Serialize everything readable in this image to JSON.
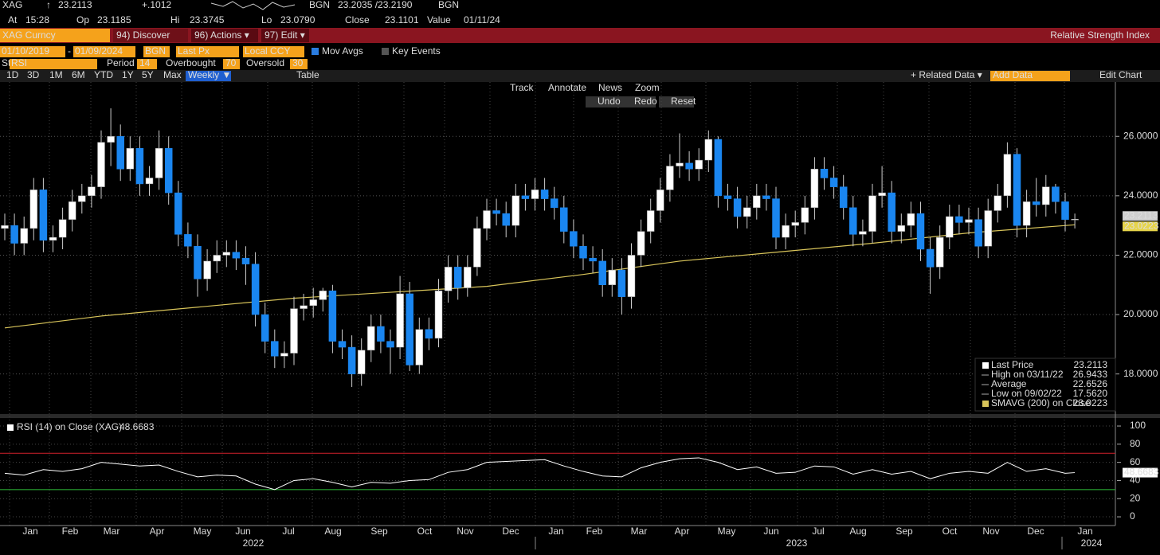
{
  "header": {
    "ticker": "XAG",
    "arrow": "↑",
    "last": "23.2113",
    "change": "+.1012",
    "bid_src": "BGN",
    "bid_ask": "23.2035 /23.2190",
    "ask_src": "BGN",
    "time_label": "At",
    "time": "15:28",
    "open_label": "Op",
    "open": "23.1185",
    "high_label": "Hi",
    "high": "23.3745",
    "low_label": "Lo",
    "low": "23.0790",
    "close_label": "Close",
    "close": "23.1101",
    "value_label": "Value",
    "value_date": "01/11/24"
  },
  "menu": {
    "security": "XAG Curncy",
    "discover": "94) Discover",
    "actions": "96) Actions ▾",
    "edit": "97) Edit ▾",
    "function_title": "Relative Strength Index"
  },
  "settings": {
    "start_date": "01/10/2019",
    "dash": "-",
    "end_date": "01/09/2024",
    "source": "BGN",
    "field": "Last Px",
    "currency": "Local CCY",
    "mov_avgs": "Mov Avgs",
    "key_events": "Key Events"
  },
  "study": {
    "label": "Study",
    "name": "RSI",
    "period_label": "Period",
    "period": 14,
    "overbought_label": "Overbought",
    "overbought": 70,
    "oversold_label": "Oversold",
    "oversold": 30
  },
  "periods": [
    "1D",
    "3D",
    "1M",
    "6M",
    "YTD",
    "1Y",
    "5Y",
    "Max"
  ],
  "frequency": "Weekly ▼",
  "table": "Table",
  "related": "+ Related Data ▾",
  "add_data": "Add Data",
  "edit_chart": "Edit Chart",
  "tools": [
    "Track",
    "Annotate",
    "News",
    "Zoom"
  ],
  "actions": [
    "Undo",
    "Redo",
    "Reset"
  ],
  "chart_data": [
    {
      "type": "candlestick",
      "up_color": "#ffffff",
      "down_color": "#1a86f0",
      "open": [
        22.9,
        23.0,
        22.4,
        22.9,
        24.2,
        22.5,
        22.6,
        23.2,
        23.8,
        24.0,
        24.3,
        25.8,
        26.0,
        24.9,
        25.6,
        24.4,
        24.6,
        25.6,
        24.1,
        22.7,
        22.3,
        21.2,
        21.8,
        22.0,
        22.1,
        21.9,
        21.7,
        20.0,
        19.1,
        18.6,
        18.7,
        20.2,
        20.3,
        20.5,
        20.8,
        19.1,
        18.9,
        18.0,
        18.8,
        19.6,
        19.1,
        18.9,
        20.7,
        18.3,
        19.5,
        19.2,
        20.8,
        21.6,
        20.9,
        21.6,
        22.9,
        23.5,
        23.4,
        23.0,
        24.0,
        23.9,
        24.2,
        23.9,
        23.6,
        22.8,
        22.3,
        21.9,
        21.8,
        21.0,
        21.5,
        20.6,
        22.0,
        22.8,
        23.5,
        24.2,
        25.0,
        25.1,
        24.9,
        25.2,
        25.9,
        24.0,
        23.9,
        23.3,
        23.6,
        24.0,
        23.9,
        22.6,
        23.0,
        23.1,
        23.6,
        24.9,
        24.6,
        24.3,
        23.6,
        22.7,
        22.8,
        24.0,
        24.1,
        22.8,
        23.0,
        23.4,
        22.2,
        21.6,
        22.6,
        23.3,
        23.1,
        23.2,
        22.3,
        23.5,
        24.0,
        25.4,
        23.0,
        23.8,
        23.7,
        24.3,
        23.8,
        23.2
      ],
      "high": [
        23.4,
        23.4,
        23.3,
        24.6,
        24.6,
        23.0,
        23.6,
        24.2,
        24.4,
        24.7,
        26.2,
        26.9433,
        26.4,
        26.0,
        26.0,
        25.0,
        26.2,
        26.0,
        24.5,
        23.1,
        22.7,
        22.2,
        22.5,
        22.5,
        22.5,
        22.3,
        22.1,
        20.4,
        19.5,
        19.1,
        20.6,
        20.7,
        20.9,
        20.9,
        21.0,
        19.5,
        19.3,
        19.2,
        20.0,
        20.0,
        19.5,
        21.3,
        21.1,
        19.9,
        19.9,
        21.2,
        22.0,
        22.0,
        22.0,
        23.3,
        23.9,
        23.9,
        23.8,
        24.4,
        24.4,
        24.6,
        24.6,
        24.3,
        24.0,
        23.2,
        22.7,
        22.3,
        22.2,
        21.9,
        21.9,
        22.4,
        23.2,
        23.9,
        24.6,
        25.4,
        26.1,
        25.5,
        25.6,
        26.2,
        26.0,
        24.4,
        24.3,
        24.0,
        24.4,
        24.4,
        24.3,
        23.4,
        23.5,
        24.0,
        25.3,
        25.3,
        25.0,
        24.7,
        24.0,
        23.2,
        24.4,
        25.0,
        24.5,
        23.4,
        23.8,
        23.8,
        22.6,
        23.0,
        23.7,
        23.7,
        23.6,
        23.6,
        23.9,
        24.4,
        25.8,
        25.6,
        24.2,
        24.6,
        24.7,
        24.4,
        24.1,
        23.4
      ],
      "low": [
        22.5,
        22.0,
        22.0,
        22.5,
        22.1,
        22.1,
        22.2,
        22.8,
        23.4,
        23.6,
        23.9,
        25.0,
        24.5,
        24.5,
        24.0,
        24.0,
        24.2,
        23.7,
        22.3,
        21.9,
        20.6,
        20.8,
        21.4,
        21.6,
        21.5,
        21.0,
        19.6,
        18.7,
        18.2,
        18.2,
        18.3,
        19.8,
        19.9,
        20.1,
        18.7,
        18.5,
        17.562,
        17.6,
        18.4,
        18.7,
        18.0,
        18.5,
        18.1,
        18.0,
        18.8,
        18.9,
        20.4,
        20.5,
        20.6,
        21.3,
        22.5,
        23.0,
        22.6,
        22.6,
        23.5,
        23.5,
        23.5,
        23.2,
        22.4,
        21.9,
        21.5,
        21.4,
        20.6,
        20.6,
        20.0,
        20.2,
        21.6,
        22.4,
        23.1,
        23.8,
        24.6,
        24.5,
        24.5,
        24.8,
        23.6,
        23.5,
        22.9,
        22.9,
        23.2,
        23.5,
        22.2,
        22.2,
        22.6,
        22.7,
        23.2,
        24.2,
        23.9,
        23.2,
        22.3,
        22.3,
        22.4,
        23.6,
        22.4,
        22.4,
        22.6,
        21.8,
        20.7,
        21.2,
        22.2,
        22.7,
        22.7,
        21.9,
        21.9,
        23.1,
        23.6,
        22.6,
        22.6,
        23.3,
        23.3,
        23.4,
        22.8,
        22.9
      ],
      "close": [
        23.0,
        22.4,
        22.9,
        24.2,
        22.5,
        22.6,
        23.2,
        23.8,
        24.0,
        24.3,
        25.8,
        26.0,
        24.9,
        25.6,
        24.4,
        24.6,
        25.6,
        24.1,
        22.7,
        22.3,
        21.2,
        21.8,
        22.0,
        22.1,
        21.9,
        21.7,
        20.0,
        19.1,
        18.6,
        18.7,
        20.2,
        20.3,
        20.5,
        20.8,
        19.1,
        18.9,
        18.0,
        18.8,
        19.6,
        19.1,
        18.9,
        20.7,
        18.3,
        19.5,
        19.2,
        20.8,
        21.6,
        20.9,
        21.6,
        22.9,
        23.5,
        23.4,
        23.0,
        24.0,
        23.9,
        24.2,
        23.9,
        23.6,
        22.8,
        22.3,
        21.9,
        21.8,
        21.0,
        21.5,
        20.6,
        22.0,
        22.8,
        23.5,
        24.2,
        25.0,
        25.1,
        24.9,
        25.2,
        25.9,
        24.0,
        23.9,
        23.3,
        23.6,
        24.0,
        23.9,
        22.6,
        23.0,
        23.1,
        23.6,
        24.9,
        24.6,
        24.3,
        23.6,
        22.7,
        22.8,
        24.0,
        24.1,
        22.8,
        23.0,
        23.4,
        22.2,
        21.6,
        22.6,
        23.3,
        23.1,
        23.2,
        22.3,
        23.5,
        24.0,
        25.4,
        23.0,
        23.8,
        23.7,
        24.3,
        23.8,
        23.2,
        23.2113
      ],
      "sma": {
        "name": "SMAVG (200) on Close",
        "color": "#d8c45a",
        "x": [
          0,
          10,
          20,
          30,
          40,
          50,
          60,
          70,
          80,
          90,
          100,
          111
        ],
        "values": [
          19.55,
          19.95,
          20.25,
          20.55,
          20.75,
          20.95,
          21.35,
          21.8,
          22.1,
          22.4,
          22.75,
          23.0223
        ]
      },
      "last_tag": "23.2113",
      "sma_tag": "23.0223",
      "ylim": [
        16.65,
        27.83
      ],
      "yticks": [
        {
          "value": 18,
          "label": "18.0000"
        },
        {
          "value": 20,
          "label": "20.0000"
        },
        {
          "value": 22,
          "label": "22.0000"
        },
        {
          "value": 24,
          "label": "24.0000"
        },
        {
          "value": 26,
          "label": "26.0000"
        }
      ],
      "grid": true,
      "legend": [
        {
          "label": "Last Price",
          "value": "23.2113"
        },
        {
          "label": "High on 03/11/22",
          "value": "26.9433"
        },
        {
          "label": "Average",
          "value": "22.6526"
        },
        {
          "label": "Low on 09/02/22",
          "value": "17.5620"
        },
        {
          "label": "SMAVG (200) on Close",
          "value": "23.0223"
        }
      ],
      "x_labels": [
        "Jan",
        "Feb",
        "Mar",
        "Apr",
        "May",
        "Jun",
        "Jul",
        "Aug",
        "Sep",
        "Oct",
        "Nov",
        "Dec",
        "Jan",
        "Feb",
        "Mar",
        "Apr",
        "May",
        "Jun",
        "Jul",
        "Aug",
        "Sep",
        "Oct",
        "Nov",
        "Dec",
        "Jan"
      ],
      "years": [
        "2022",
        "2023",
        "2024"
      ]
    },
    {
      "type": "line",
      "name": "RSI (14) on Close (XAG)",
      "last": "48.6683",
      "color": "#ffffff",
      "x": [
        0,
        2,
        4,
        6,
        8,
        10,
        12,
        14,
        16,
        18,
        20,
        22,
        24,
        26,
        28,
        30,
        32,
        34,
        36,
        38,
        40,
        42,
        44,
        46,
        48,
        50,
        52,
        54,
        56,
        58,
        60,
        62,
        64,
        66,
        68,
        70,
        72,
        74,
        76,
        78,
        80,
        82,
        84,
        86,
        88,
        90,
        92,
        94,
        96,
        98,
        100,
        102,
        104,
        106,
        108,
        110,
        111
      ],
      "values": [
        48,
        46,
        52,
        50,
        53,
        60,
        58,
        56,
        57,
        50,
        44,
        46,
        45,
        36,
        30,
        40,
        42,
        38,
        33,
        38,
        37,
        40,
        41,
        49,
        52,
        60,
        61,
        62,
        63,
        56,
        50,
        45,
        44,
        54,
        60,
        64,
        65,
        60,
        52,
        55,
        48,
        49,
        56,
        55,
        47,
        52,
        47,
        50,
        42,
        48,
        50,
        48,
        60,
        50,
        53,
        48,
        48.6683
      ],
      "ylim": [
        -9.6,
        108.8
      ],
      "yticks": [
        0,
        20,
        40,
        60,
        80,
        100
      ],
      "overbought_color": "#d0202a",
      "oversold_color": "#2fbf3a",
      "grid": true
    }
  ]
}
